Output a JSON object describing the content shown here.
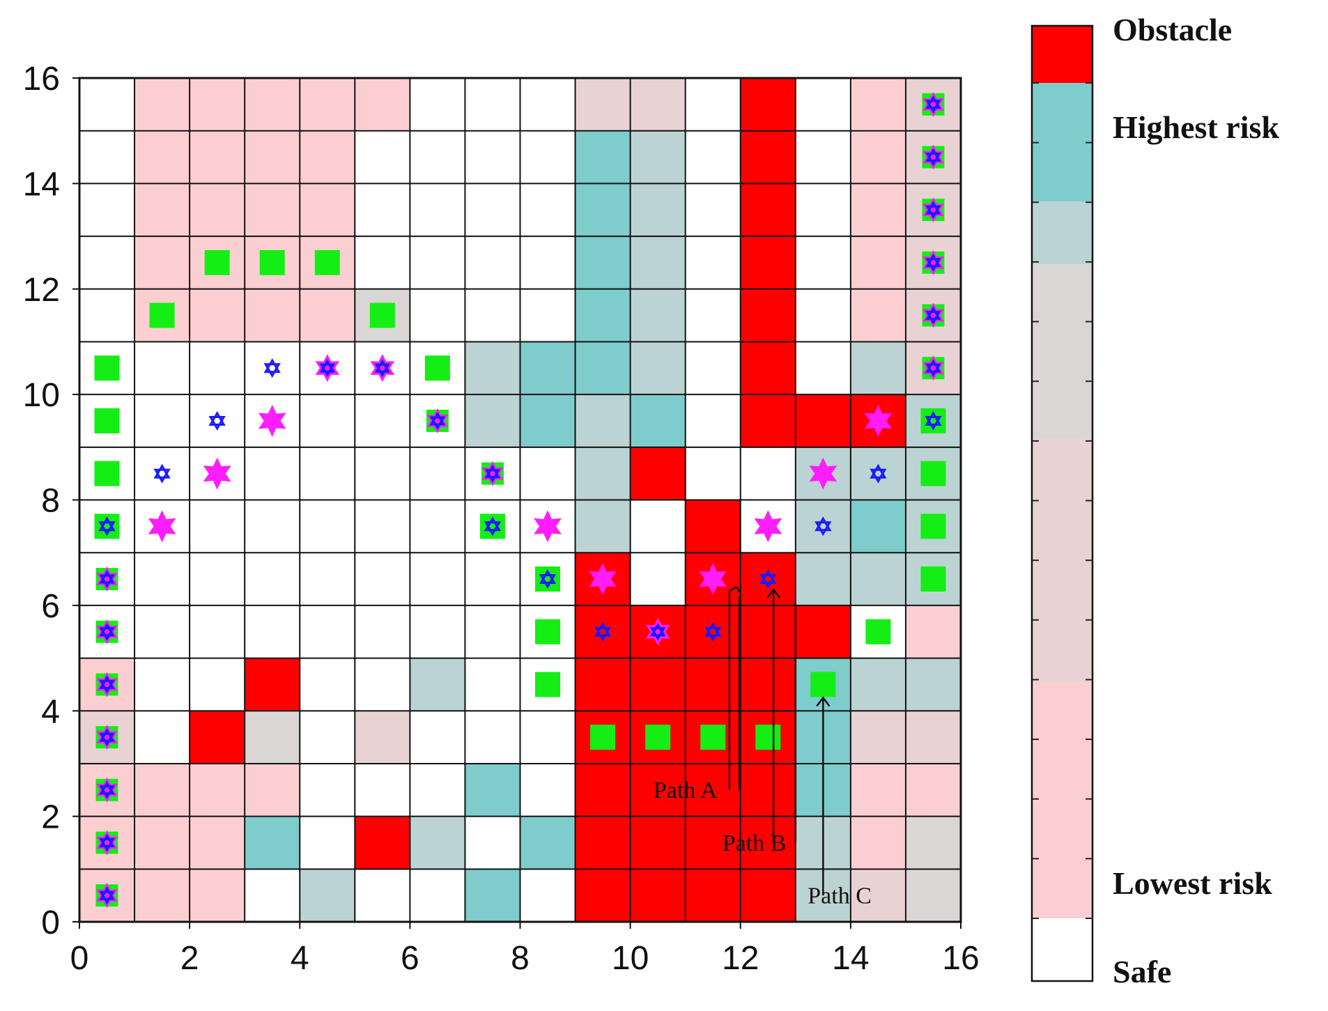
{
  "chart_data": {
    "type": "heatmap",
    "title": "",
    "xlabel": "",
    "ylabel": "",
    "xlim": [
      0,
      16
    ],
    "ylim": [
      0,
      16
    ],
    "x_ticks": [
      "0",
      "2",
      "4",
      "6",
      "8",
      "10",
      "12",
      "14",
      "16"
    ],
    "y_ticks": [
      "0",
      "2",
      "4",
      "6",
      "8",
      "10",
      "12",
      "14",
      "16"
    ],
    "grid": true,
    "colors": {
      "obstacle": "#ff0000",
      "r5": "#7ecccc",
      "r4": "#bcd3d3",
      "r3": "#dad6d6",
      "r2": "#e9d2d4",
      "r1": "#fbcfd2",
      "safe": "#ffffff",
      "square": "#14ee14",
      "star": "#ff1dfd",
      "hexagram": "#1a1aff"
    },
    "legend": {
      "placement": "right",
      "labels": [
        "Obstacle",
        "Highest risk",
        "Lowest risk",
        "Safe"
      ]
    },
    "cells": [
      "011111...22.O.12",
      "011110...54.O.12",
      "011110...54.O.12",
      "011110...54.O.12",
      "011113...54.O.12",
      "00000..4554.O.42",
      "0......4545.OOO4",
      "00.......4O..444",
      ".........4.O.454",
      ".0.......O.OO444",
      "0........OOOOO01",
      "1..O..4..OOOO544",
      "2.O3.2...OOOO522",
      "1111...5.OOOO511",
      "1115.O4.5OOOO413",
      "111.4..5.OOOO423"
    ],
    "markers": [
      {
        "x": 0.5,
        "y": 0.5,
        "m": "Q"
      },
      {
        "x": 0.5,
        "y": 1.5,
        "m": "Q"
      },
      {
        "x": 0.5,
        "y": 2.5,
        "m": "Q"
      },
      {
        "x": 0.5,
        "y": 3.5,
        "m": "Q"
      },
      {
        "x": 0.5,
        "y": 4.5,
        "m": "Q"
      },
      {
        "x": 0.5,
        "y": 5.5,
        "m": "Q"
      },
      {
        "x": 0.5,
        "y": 6.5,
        "m": "Q"
      },
      {
        "x": 0.5,
        "y": 7.5,
        "m": "B"
      },
      {
        "x": 0.5,
        "y": 8.5,
        "m": "S"
      },
      {
        "x": 0.5,
        "y": 9.5,
        "m": "S"
      },
      {
        "x": 0.5,
        "y": 10.5,
        "m": "S"
      },
      {
        "x": 1.5,
        "y": 7.5,
        "m": "P"
      },
      {
        "x": 1.5,
        "y": 8.5,
        "m": "H"
      },
      {
        "x": 1.5,
        "y": 11.5,
        "m": "S"
      },
      {
        "x": 2.5,
        "y": 8.5,
        "m": "P"
      },
      {
        "x": 2.5,
        "y": 9.5,
        "m": "H"
      },
      {
        "x": 2.5,
        "y": 12.5,
        "m": "S"
      },
      {
        "x": 3.5,
        "y": 9.5,
        "m": "P"
      },
      {
        "x": 3.5,
        "y": 10.5,
        "m": "H"
      },
      {
        "x": 3.5,
        "y": 12.5,
        "m": "S"
      },
      {
        "x": 4.5,
        "y": 10.5,
        "m": "PH"
      },
      {
        "x": 4.5,
        "y": 12.5,
        "m": "S"
      },
      {
        "x": 5.5,
        "y": 10.5,
        "m": "PH"
      },
      {
        "x": 5.5,
        "y": 11.5,
        "m": "S"
      },
      {
        "x": 6.5,
        "y": 9.5,
        "m": "Q"
      },
      {
        "x": 6.5,
        "y": 10.5,
        "m": "S"
      },
      {
        "x": 7.5,
        "y": 7.5,
        "m": "B"
      },
      {
        "x": 7.5,
        "y": 8.5,
        "m": "Q"
      },
      {
        "x": 8.5,
        "y": 4.5,
        "m": "S"
      },
      {
        "x": 8.5,
        "y": 5.5,
        "m": "S"
      },
      {
        "x": 8.5,
        "y": 6.5,
        "m": "B"
      },
      {
        "x": 8.5,
        "y": 7.5,
        "m": "P"
      },
      {
        "x": 9.5,
        "y": 3.5,
        "m": "S"
      },
      {
        "x": 9.5,
        "y": 5.5,
        "m": "H"
      },
      {
        "x": 9.5,
        "y": 6.5,
        "m": "P"
      },
      {
        "x": 10.5,
        "y": 3.5,
        "m": "S"
      },
      {
        "x": 10.5,
        "y": 5.5,
        "m": "PH"
      },
      {
        "x": 11.5,
        "y": 3.5,
        "m": "S"
      },
      {
        "x": 11.5,
        "y": 5.5,
        "m": "H"
      },
      {
        "x": 11.5,
        "y": 6.5,
        "m": "P"
      },
      {
        "x": 12.5,
        "y": 3.5,
        "m": "S"
      },
      {
        "x": 12.5,
        "y": 6.5,
        "m": "H"
      },
      {
        "x": 12.5,
        "y": 7.5,
        "m": "P"
      },
      {
        "x": 13.5,
        "y": 4.5,
        "m": "S"
      },
      {
        "x": 13.5,
        "y": 7.5,
        "m": "H"
      },
      {
        "x": 13.5,
        "y": 8.5,
        "m": "P"
      },
      {
        "x": 14.5,
        "y": 5.5,
        "m": "S"
      },
      {
        "x": 14.5,
        "y": 8.5,
        "m": "H"
      },
      {
        "x": 14.5,
        "y": 9.5,
        "m": "P"
      },
      {
        "x": 15.5,
        "y": 6.5,
        "m": "S"
      },
      {
        "x": 15.5,
        "y": 7.5,
        "m": "S"
      },
      {
        "x": 15.5,
        "y": 8.5,
        "m": "S"
      },
      {
        "x": 15.5,
        "y": 9.5,
        "m": "B"
      },
      {
        "x": 15.5,
        "y": 10.5,
        "m": "Q"
      },
      {
        "x": 15.5,
        "y": 11.5,
        "m": "Q"
      },
      {
        "x": 15.5,
        "y": 12.5,
        "m": "Q"
      },
      {
        "x": 15.5,
        "y": 13.5,
        "m": "Q"
      },
      {
        "x": 15.5,
        "y": 14.5,
        "m": "Q"
      },
      {
        "x": 15.5,
        "y": 15.5,
        "m": "Q"
      }
    ],
    "annotations": [
      {
        "label": "Path A",
        "x": 11.8,
        "y": 6.3
      },
      {
        "label": "Path B",
        "x": 12.6,
        "y": 6.3
      },
      {
        "label": "Path C",
        "x": 13.5,
        "y": 4.25
      }
    ]
  }
}
